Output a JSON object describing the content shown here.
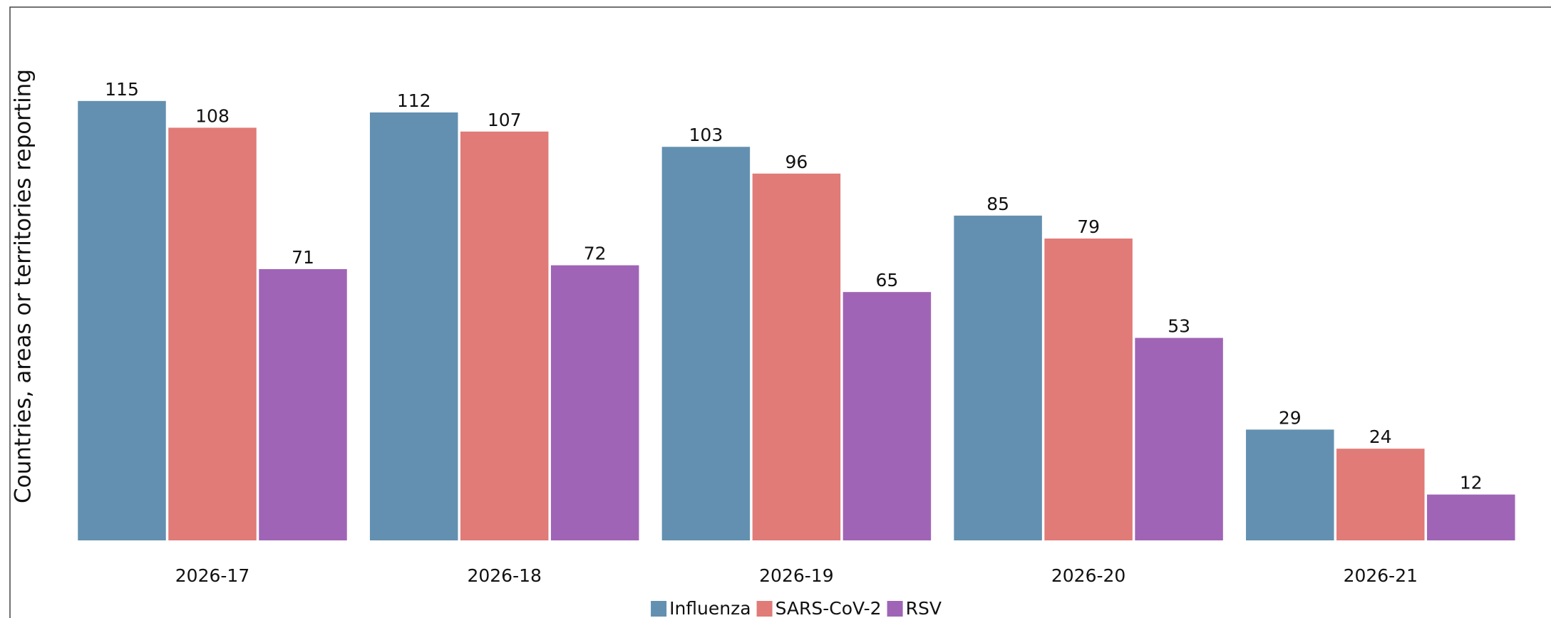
{
  "chart_data": {
    "type": "bar",
    "y_label": "Countries, areas or territories reporting",
    "categories": [
      "2026-17",
      "2026-18",
      "2026-19",
      "2026-20",
      "2026-21"
    ],
    "series": [
      {
        "name": "Influenza",
        "color": "#6390b0",
        "values": [
          115,
          112,
          103,
          85,
          29
        ]
      },
      {
        "name": "SARS-CoV-2",
        "color": "#e07b78",
        "values": [
          108,
          107,
          96,
          79,
          24
        ]
      },
      {
        "name": "RSV",
        "color": "#a064b6",
        "values": [
          71,
          72,
          65,
          53,
          12
        ]
      }
    ],
    "ylim": [
      0,
      120
    ],
    "legend": "bottom"
  }
}
